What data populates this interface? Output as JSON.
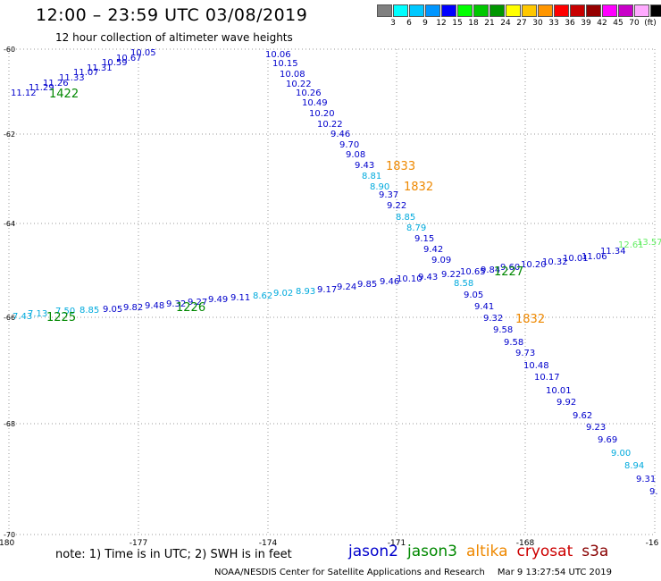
{
  "header": {
    "title": "12:00 – 23:59 UTC 03/08/2019",
    "subtitle": "12 hour collection of altimeter wave heights"
  },
  "colorbar": {
    "unit_label": "(ft)",
    "boxes": [
      "#808080",
      "#00ffff",
      "#00c8ff",
      "#0096ff",
      "#0000ff",
      "#00ff00",
      "#00c800",
      "#009600",
      "#ffff00",
      "#ffc800",
      "#ff9600",
      "#ff0000",
      "#c80000",
      "#960000",
      "#ff00ff",
      "#c800c8",
      "#ffaaff",
      "#000000"
    ],
    "labels": [
      "3",
      "6",
      "9",
      "12",
      "15",
      "18",
      "21",
      "24",
      "27",
      "30",
      "33",
      "36",
      "39",
      "42",
      "45",
      "70",
      "(ft)"
    ]
  },
  "axes": {
    "lon_ticks": [
      "-180",
      "-177",
      "-174",
      "-171",
      "-168",
      "-16"
    ],
    "lat_ticks": [
      "-60",
      "-62",
      "-64",
      "-66",
      "-68",
      "-70"
    ]
  },
  "passes": [
    {
      "color": "#0000cc",
      "values": [
        "11.12",
        "11.29",
        "11.26",
        "11.33",
        "11.07",
        "11.31",
        "10.59",
        "10.67",
        "10.05"
      ]
    },
    {
      "color": "#0000cc",
      "values": [
        "10.06",
        "10.15",
        "10.08",
        "10.22",
        "10.26",
        "10.49",
        "10.20",
        "10.22",
        "9.46",
        "9.70",
        "9.08",
        "9.43"
      ]
    },
    {
      "color": "#00aadd",
      "values": [
        "8.81",
        "8.90"
      ]
    },
    {
      "color": "#0000cc",
      "values": [
        "9.37",
        "9.22"
      ]
    },
    {
      "color": "#00aadd",
      "values": [
        "8.85",
        "8.79"
      ]
    },
    {
      "color": "#0000cc",
      "values": [
        "9.15",
        "9.42",
        "9.09"
      ]
    },
    {
      "color": "#00aadd",
      "values": [
        "7.43",
        "7.13",
        "7.50",
        "8.85"
      ]
    },
    {
      "color": "#0000cc",
      "values": [
        "9.05",
        "9.82",
        "9.48",
        "9.32",
        "9.27",
        "9.49",
        "9.11"
      ]
    },
    {
      "color": "#00aadd",
      "values": [
        "8.62",
        "9.02",
        "8.93"
      ]
    },
    {
      "color": "#0000cc",
      "values": [
        "9.17",
        "9.24",
        "9.85",
        "9.46",
        "10.10",
        "9.43",
        "9.22",
        "10.65",
        "9.84",
        "9.60",
        "10.20",
        "10.32",
        "10.01",
        "11.06",
        "11.34"
      ]
    },
    {
      "color": "#66ee66",
      "values": [
        "12.61",
        "13.57"
      ]
    },
    {
      "color": "#00aadd",
      "values": [
        "8.58"
      ]
    },
    {
      "color": "#0000cc",
      "values": [
        "9.05",
        "9.41",
        "9.32",
        "9.58",
        "9.58",
        "9.73",
        "10.48",
        "10.17",
        "10.01",
        "9.92",
        "9.62",
        "9.23",
        "9.69"
      ]
    },
    {
      "color": "#00aadd",
      "values": [
        "9.00",
        "8.94"
      ]
    },
    {
      "color": "#0000cc",
      "values": [
        "9.31",
        "9."
      ]
    }
  ],
  "time_labels": [
    {
      "text": "1422",
      "color": "#008800"
    },
    {
      "text": "1833",
      "color": "#ee8800"
    },
    {
      "text": "1832",
      "color": "#ee8800"
    },
    {
      "text": "1227",
      "color": "#008800"
    },
    {
      "text": "1225",
      "color": "#008800"
    },
    {
      "text": "1226",
      "color": "#008800"
    },
    {
      "text": "1832",
      "color": "#ee8800"
    }
  ],
  "footer": {
    "note": "note:  1) Time is in UTC;  2) SWH is in feet",
    "satellites": [
      {
        "name": "jason2",
        "color": "#0000cc"
      },
      {
        "name": "jason3",
        "color": "#008800"
      },
      {
        "name": "altika",
        "color": "#ee8800"
      },
      {
        "name": "cryosat",
        "color": "#cc0000"
      },
      {
        "name": "s3a",
        "color": "#880000"
      }
    ],
    "credit": "NOAA/NESDIS Center for Satellite Applications and Research",
    "timestamp": "Mar  9 13:27:54 UTC 2019"
  }
}
